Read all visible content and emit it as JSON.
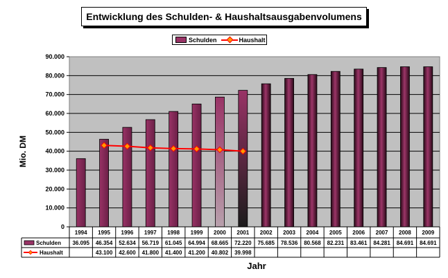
{
  "chart_data": {
    "type": "bar",
    "title": "Entwicklung des Schulden- & Haushaltsausgabenvolumens",
    "xlabel": "Jahr",
    "ylabel": "Mio. DM",
    "ylim": [
      0,
      90000
    ],
    "yticks": [
      "0",
      "10.000",
      "20.000",
      "30.000",
      "40.000",
      "50.000",
      "60.000",
      "70.000",
      "80.000",
      "90.000"
    ],
    "grid": true,
    "legend_position": "top-center",
    "categories": [
      "1994",
      "1995",
      "1996",
      "1997",
      "1998",
      "1999",
      "2000",
      "2001",
      "2002",
      "2003",
      "2004",
      "2005",
      "2006",
      "2007",
      "2008",
      "2009"
    ],
    "series": [
      {
        "name": "Schulden",
        "kind": "bar",
        "color": "#993366",
        "values": [
          36095,
          46354,
          52634,
          56719,
          61045,
          64994,
          68665,
          72220,
          75685,
          78536,
          80568,
          82231,
          83461,
          84281,
          84691,
          84691
        ],
        "labels": [
          "36.095",
          "46.354",
          "52.634",
          "56.719",
          "61.045",
          "64.994",
          "68.665",
          "72.220",
          "75.685",
          "78.536",
          "80.568",
          "82.231",
          "83.461",
          "84.281",
          "84.691",
          "84.691"
        ]
      },
      {
        "name": "Haushalt",
        "kind": "line",
        "color": "#ff0000",
        "marker_color": "#ff9900",
        "values": [
          null,
          43100,
          42600,
          41800,
          41400,
          41200,
          40802,
          39998,
          null,
          null,
          null,
          null,
          null,
          null,
          null,
          null
        ],
        "labels": [
          "",
          "43.100",
          "42.600",
          "41.800",
          "41.400",
          "41.200",
          "40.802",
          "39.998",
          "",
          "",
          "",
          "",
          "",
          "",
          "",
          ""
        ]
      }
    ]
  }
}
